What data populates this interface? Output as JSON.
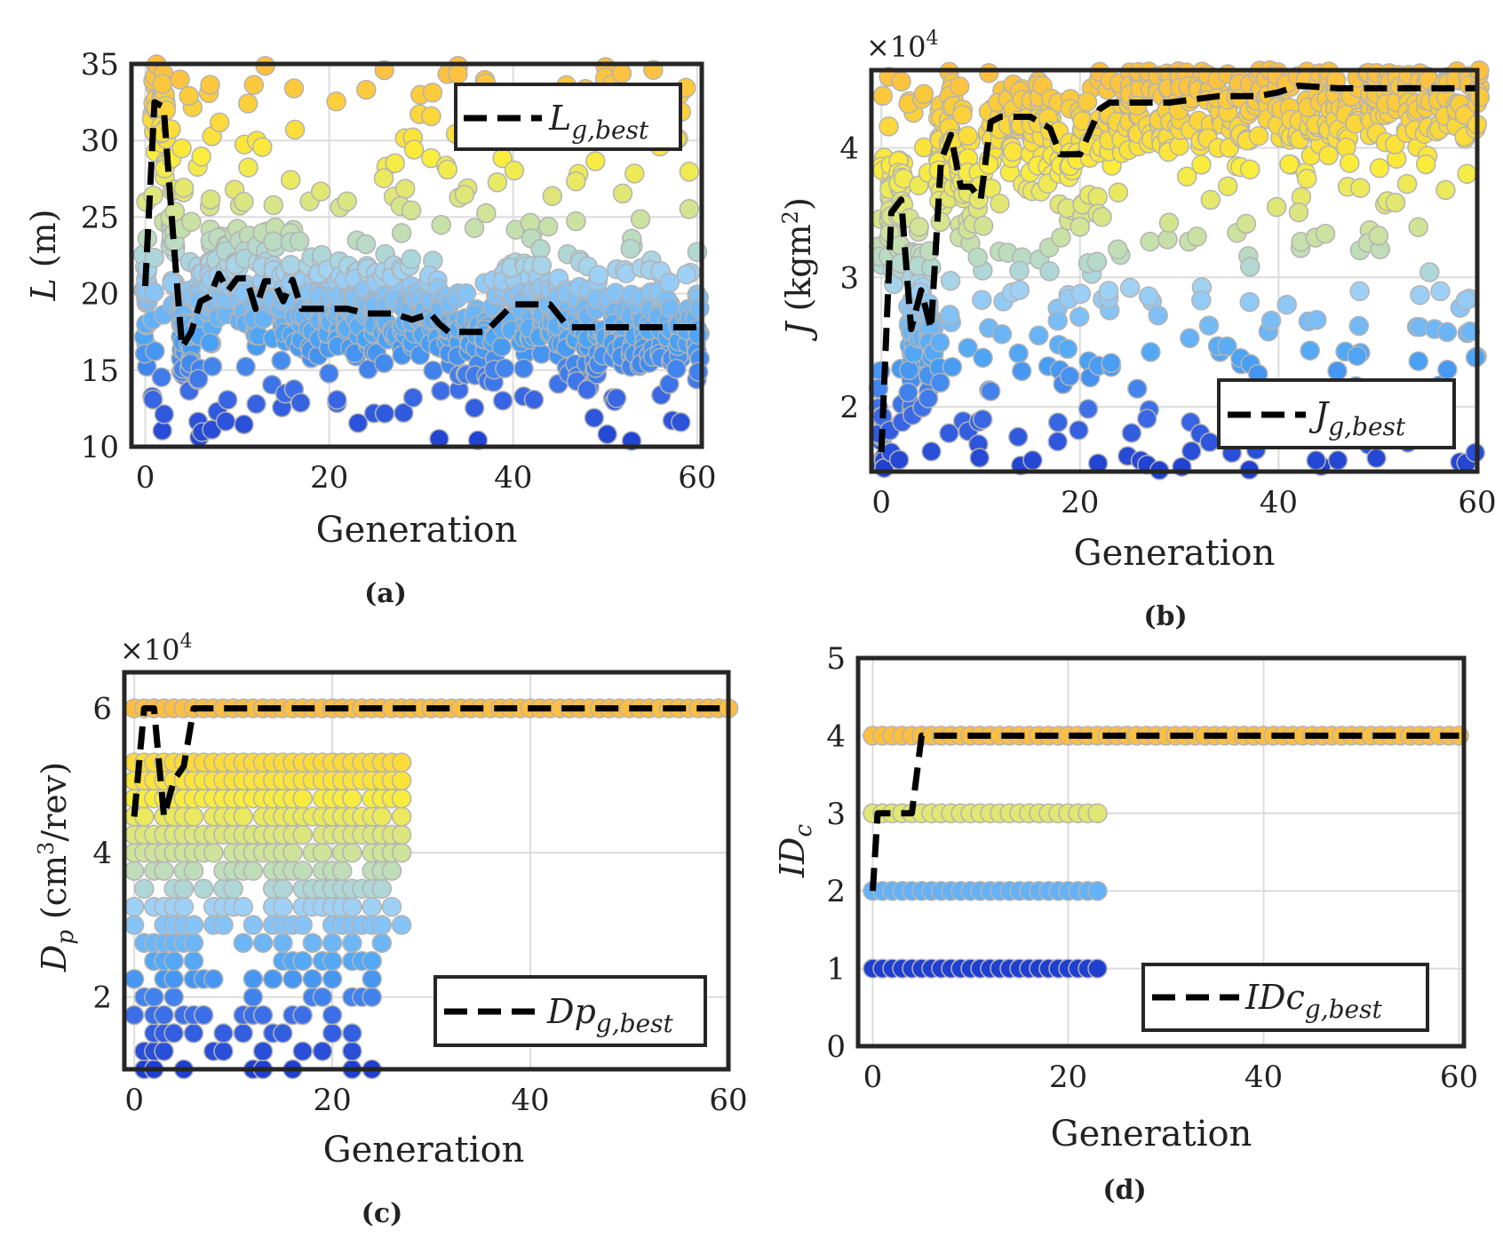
{
  "figure": {
    "caption_labels": [
      "(a)",
      "(b)",
      "(c)",
      "(d)"
    ]
  },
  "chart_data": [
    {
      "type": "scatter",
      "panel": "(a)",
      "xlabel": "Generation",
      "ylabel": "L (m)",
      "ylabel_var": "L",
      "ylabel_unit": "(m)",
      "xlim": [
        -1.5,
        60.5
      ],
      "ylim": [
        10,
        35
      ],
      "xticks": [
        0,
        20,
        40,
        60
      ],
      "yticks": [
        10,
        15,
        20,
        25,
        30,
        35
      ],
      "exponent_label": "",
      "legend": {
        "label": "L",
        "subscript": "g,best",
        "position": "top-right"
      },
      "population": {
        "generations": [
          0,
          60
        ],
        "band_fraction": 0.07,
        "band_center_fraction": 0.32,
        "outlier_rate": 0.25
      },
      "best": {
        "x": [
          0,
          1,
          2,
          3,
          4,
          5,
          6,
          7,
          8,
          9,
          10,
          11,
          12,
          13,
          14,
          15,
          16,
          17,
          20,
          22,
          24,
          27,
          29,
          31,
          32,
          33,
          35,
          37,
          40,
          44,
          46,
          60
        ],
        "y": [
          20.5,
          32.5,
          32.2,
          24,
          16.5,
          17.5,
          19.5,
          19.8,
          21.3,
          20.2,
          21,
          21,
          19,
          20.8,
          20.8,
          19.5,
          20.9,
          19,
          19,
          19,
          18.7,
          18.7,
          18.3,
          18.7,
          18,
          17.5,
          17.5,
          17.5,
          19.3,
          19.3,
          17.8,
          17.8
        ]
      }
    },
    {
      "type": "scatter",
      "panel": "(b)",
      "xlabel": "Generation",
      "ylabel": "J (kgm2)",
      "ylabel_var": "J",
      "ylabel_unit_pre": "(kgm",
      "ylabel_unit_sup": "2",
      "ylabel_unit_post": ")",
      "xlim": [
        -1,
        60
      ],
      "ylim": [
        15000,
        46000
      ],
      "xticks": [
        0,
        20,
        40,
        60
      ],
      "yticks": [
        20000,
        30000,
        40000
      ],
      "ytick_labels": [
        "2",
        "3",
        "4"
      ],
      "exponent_label": "×10",
      "exponent_power": "4",
      "legend": {
        "label": "J",
        "subscript": "g,best",
        "position": "bottom-right"
      },
      "population": {
        "generations": [
          0,
          60
        ],
        "band_fraction": 0.08,
        "band_center_fraction": 0.88,
        "outlier_rate": 0.3
      },
      "best": {
        "x": [
          0,
          1,
          2,
          3,
          4,
          5,
          6,
          7,
          8,
          9,
          10,
          11,
          12,
          15,
          17,
          18,
          20,
          22,
          23,
          24,
          29,
          34,
          38,
          40,
          42,
          46,
          60
        ],
        "y": [
          16500,
          35000,
          36000,
          26000,
          29000,
          26000,
          39000,
          41000,
          37000,
          37000,
          36000,
          42000,
          42400,
          42400,
          41500,
          39500,
          39500,
          43000,
          43500,
          43500,
          43500,
          44000,
          44000,
          44300,
          44800,
          44600,
          44600
        ]
      }
    },
    {
      "type": "scatter",
      "panel": "(c)",
      "xlabel": "Generation",
      "ylabel": "Dp (cm3/rev)",
      "ylabel_var": "D",
      "ylabel_var_sub": "p",
      "ylabel_unit_pre": "(cm",
      "ylabel_unit_sup": "3",
      "ylabel_unit_post": "/rev)",
      "xlim": [
        -1,
        60
      ],
      "ylim": [
        10000,
        65000
      ],
      "xticks": [
        0,
        20,
        40,
        60
      ],
      "yticks": [
        20000,
        40000,
        60000
      ],
      "ytick_labels": [
        "2",
        "4",
        "6"
      ],
      "exponent_label": "×10",
      "exponent_power": "4",
      "levels": [
        10000,
        12500,
        15000,
        17500,
        20000,
        22500,
        25000,
        27500,
        30000,
        32500,
        35000,
        37500,
        40000,
        42500,
        45000,
        47500,
        50000,
        52500,
        60000
      ],
      "population": {
        "max_generation_lower_levels": 27,
        "max_generation_top_level": 60
      },
      "legend": {
        "label": "Dp",
        "subscript": "g,best",
        "position": "bottom-right"
      },
      "best": {
        "x": [
          0,
          1,
          2,
          3,
          4,
          5,
          6,
          7,
          60
        ],
        "y": [
          45000,
          60000,
          60000,
          45000,
          50000,
          52000,
          60000,
          60000,
          60000
        ]
      }
    },
    {
      "type": "scatter",
      "panel": "(d)",
      "xlabel": "Generation",
      "ylabel": "IDc",
      "ylabel_var": "ID",
      "ylabel_var_sub": "c",
      "xlim": [
        -1.5,
        60.5
      ],
      "ylim": [
        0,
        5
      ],
      "xticks": [
        0,
        20,
        40,
        60
      ],
      "yticks": [
        0,
        1,
        2,
        3,
        4,
        5
      ],
      "exponent_label": "",
      "levels": [
        1,
        2,
        3,
        4
      ],
      "population": {
        "max_generation_lower_levels": 23,
        "max_generation_top_level": 60
      },
      "legend": {
        "label": "IDc",
        "subscript": "g,best",
        "position": "bottom-right"
      },
      "best": {
        "x": [
          0,
          0.5,
          1,
          4,
          5,
          60
        ],
        "y": [
          2,
          3,
          3,
          3,
          4,
          4
        ]
      }
    }
  ]
}
